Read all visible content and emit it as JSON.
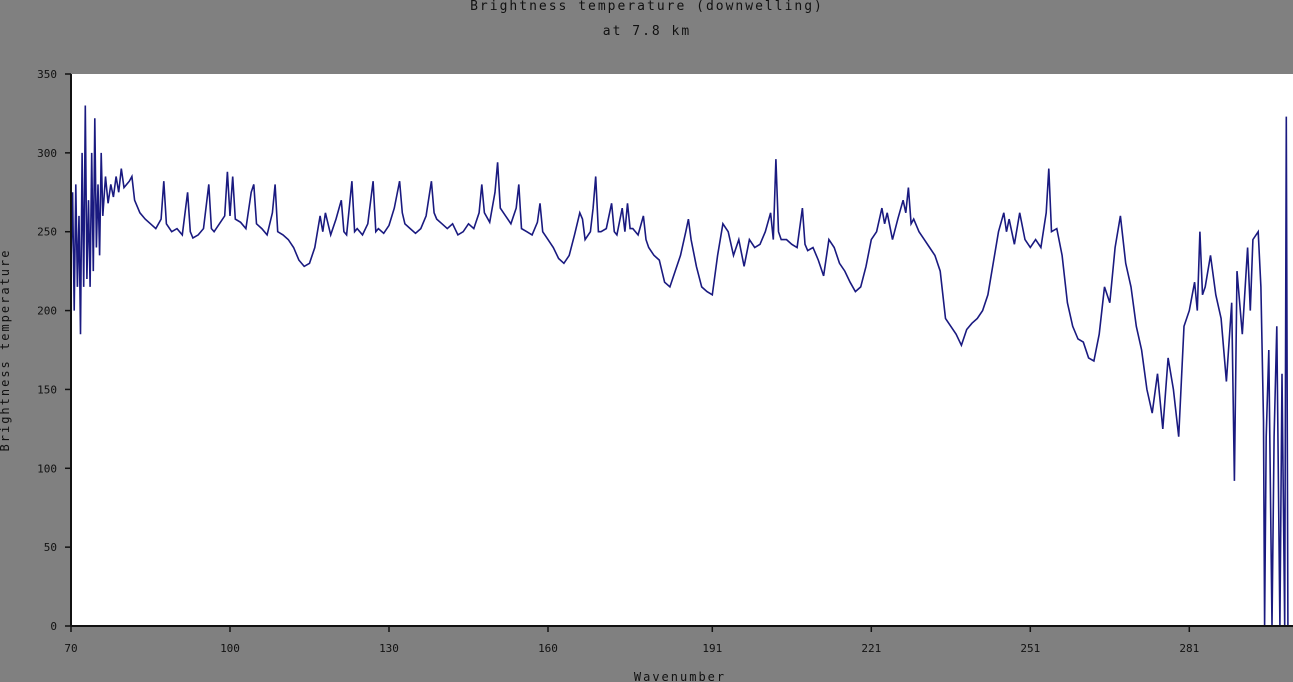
{
  "chart_data": {
    "type": "line",
    "title": "Brightness temperature (downwelling)",
    "subtitle": "at 7.8 km",
    "xlabel": "Wavenumber",
    "ylabel": "Brightness temperature",
    "xlim": [
      70,
      300
    ],
    "ylim": [
      0,
      350
    ],
    "xticks": [
      70,
      100,
      130,
      160,
      191,
      221,
      251,
      281
    ],
    "yticks": [
      0,
      50,
      100,
      150,
      200,
      250,
      300,
      350
    ],
    "grid": false,
    "line_color": "#1a1a80",
    "plot_background": "#ffffff",
    "figure_background": "#808080",
    "series": [
      {
        "points": [
          [
            70,
            230
          ],
          [
            70.3,
            275
          ],
          [
            70.6,
            200
          ],
          [
            70.9,
            280
          ],
          [
            71.2,
            215
          ],
          [
            71.5,
            260
          ],
          [
            71.8,
            185
          ],
          [
            72.1,
            300
          ],
          [
            72.4,
            215
          ],
          [
            72.7,
            330
          ],
          [
            73,
            220
          ],
          [
            73.3,
            270
          ],
          [
            73.6,
            215
          ],
          [
            73.9,
            300
          ],
          [
            74.2,
            225
          ],
          [
            74.5,
            322
          ],
          [
            74.8,
            240
          ],
          [
            75.1,
            280
          ],
          [
            75.4,
            235
          ],
          [
            75.7,
            300
          ],
          [
            76,
            260
          ],
          [
            76.5,
            285
          ],
          [
            77,
            268
          ],
          [
            77.5,
            280
          ],
          [
            78,
            272
          ],
          [
            78.5,
            285
          ],
          [
            79,
            275
          ],
          [
            79.5,
            290
          ],
          [
            80,
            278
          ],
          [
            81,
            282
          ],
          [
            81.5,
            285
          ],
          [
            82,
            270
          ],
          [
            83,
            262
          ],
          [
            84,
            258
          ],
          [
            85,
            255
          ],
          [
            86,
            252
          ],
          [
            87,
            258
          ],
          [
            87.5,
            282
          ],
          [
            88,
            255
          ],
          [
            89,
            250
          ],
          [
            90,
            252
          ],
          [
            91,
            248
          ],
          [
            92,
            275
          ],
          [
            92.5,
            250
          ],
          [
            93,
            246
          ],
          [
            94,
            248
          ],
          [
            95,
            252
          ],
          [
            96,
            280
          ],
          [
            96.5,
            252
          ],
          [
            97,
            250
          ],
          [
            98,
            255
          ],
          [
            99,
            260
          ],
          [
            99.5,
            288
          ],
          [
            100,
            260
          ],
          [
            100.5,
            285
          ],
          [
            101,
            258
          ],
          [
            102,
            256
          ],
          [
            103,
            252
          ],
          [
            104,
            275
          ],
          [
            104.5,
            280
          ],
          [
            105,
            255
          ],
          [
            106,
            252
          ],
          [
            107,
            248
          ],
          [
            108,
            262
          ],
          [
            108.5,
            280
          ],
          [
            109,
            250
          ],
          [
            110,
            248
          ],
          [
            111,
            245
          ],
          [
            112,
            240
          ],
          [
            113,
            232
          ],
          [
            114,
            228
          ],
          [
            115,
            230
          ],
          [
            116,
            240
          ],
          [
            117,
            260
          ],
          [
            117.5,
            250
          ],
          [
            118,
            262
          ],
          [
            119,
            248
          ],
          [
            120,
            258
          ],
          [
            121,
            270
          ],
          [
            121.5,
            250
          ],
          [
            122,
            248
          ],
          [
            123,
            282
          ],
          [
            123.5,
            250
          ],
          [
            124,
            252
          ],
          [
            125,
            248
          ],
          [
            126,
            255
          ],
          [
            127,
            282
          ],
          [
            127.5,
            250
          ],
          [
            128,
            252
          ],
          [
            129,
            249
          ],
          [
            130,
            254
          ],
          [
            131,
            265
          ],
          [
            132,
            282
          ],
          [
            132.5,
            262
          ],
          [
            133,
            255
          ],
          [
            134,
            252
          ],
          [
            135,
            249
          ],
          [
            136,
            252
          ],
          [
            137,
            260
          ],
          [
            138,
            282
          ],
          [
            138.5,
            262
          ],
          [
            139,
            258
          ],
          [
            140,
            255
          ],
          [
            141,
            252
          ],
          [
            142,
            255
          ],
          [
            143,
            248
          ],
          [
            144,
            250
          ],
          [
            145,
            255
          ],
          [
            146,
            252
          ],
          [
            147,
            262
          ],
          [
            147.5,
            280
          ],
          [
            148,
            262
          ],
          [
            149,
            256
          ],
          [
            150,
            275
          ],
          [
            150.5,
            294
          ],
          [
            151,
            265
          ],
          [
            152,
            260
          ],
          [
            153,
            255
          ],
          [
            154,
            265
          ],
          [
            154.5,
            280
          ],
          [
            155,
            252
          ],
          [
            156,
            250
          ],
          [
            157,
            248
          ],
          [
            158,
            256
          ],
          [
            158.5,
            268
          ],
          [
            159,
            250
          ],
          [
            160,
            245
          ],
          [
            161,
            240
          ],
          [
            162,
            233
          ],
          [
            163,
            230
          ],
          [
            164,
            235
          ],
          [
            165,
            248
          ],
          [
            166,
            262
          ],
          [
            166.5,
            258
          ],
          [
            167,
            245
          ],
          [
            168,
            250
          ],
          [
            168.5,
            265
          ],
          [
            169,
            285
          ],
          [
            169.5,
            250
          ],
          [
            170,
            250
          ],
          [
            171,
            252
          ],
          [
            172,
            268
          ],
          [
            172.5,
            250
          ],
          [
            173,
            248
          ],
          [
            174,
            265
          ],
          [
            174.5,
            250
          ],
          [
            175,
            268
          ],
          [
            175.5,
            252
          ],
          [
            176,
            252
          ],
          [
            177,
            248
          ],
          [
            178,
            260
          ],
          [
            178.5,
            245
          ],
          [
            179,
            240
          ],
          [
            180,
            235
          ],
          [
            181,
            232
          ],
          [
            182,
            218
          ],
          [
            183,
            215
          ],
          [
            184,
            225
          ],
          [
            185,
            235
          ],
          [
            186,
            250
          ],
          [
            186.5,
            258
          ],
          [
            187,
            245
          ],
          [
            188,
            228
          ],
          [
            189,
            215
          ],
          [
            190,
            212
          ],
          [
            191,
            210
          ],
          [
            192,
            235
          ],
          [
            193,
            255
          ],
          [
            194,
            250
          ],
          [
            195,
            235
          ],
          [
            196,
            245
          ],
          [
            197,
            228
          ],
          [
            198,
            245
          ],
          [
            199,
            240
          ],
          [
            200,
            242
          ],
          [
            201,
            250
          ],
          [
            202,
            262
          ],
          [
            202.5,
            245
          ],
          [
            203,
            296
          ],
          [
            203.5,
            250
          ],
          [
            204,
            245
          ],
          [
            205,
            245
          ],
          [
            206,
            242
          ],
          [
            207,
            240
          ],
          [
            208,
            265
          ],
          [
            208.5,
            242
          ],
          [
            209,
            238
          ],
          [
            210,
            240
          ],
          [
            211,
            232
          ],
          [
            212,
            222
          ],
          [
            213,
            245
          ],
          [
            214,
            240
          ],
          [
            215,
            230
          ],
          [
            216,
            225
          ],
          [
            217,
            218
          ],
          [
            218,
            212
          ],
          [
            219,
            215
          ],
          [
            220,
            228
          ],
          [
            221,
            245
          ],
          [
            222,
            250
          ],
          [
            223,
            265
          ],
          [
            223.5,
            255
          ],
          [
            224,
            262
          ],
          [
            225,
            245
          ],
          [
            226,
            258
          ],
          [
            227,
            270
          ],
          [
            227.5,
            262
          ],
          [
            228,
            278
          ],
          [
            228.5,
            255
          ],
          [
            229,
            258
          ],
          [
            230,
            250
          ],
          [
            231,
            245
          ],
          [
            232,
            240
          ],
          [
            233,
            235
          ],
          [
            234,
            225
          ],
          [
            235,
            195
          ],
          [
            236,
            190
          ],
          [
            237,
            185
          ],
          [
            238,
            178
          ],
          [
            239,
            188
          ],
          [
            240,
            192
          ],
          [
            241,
            195
          ],
          [
            242,
            200
          ],
          [
            243,
            210
          ],
          [
            244,
            230
          ],
          [
            245,
            250
          ],
          [
            246,
            262
          ],
          [
            246.5,
            250
          ],
          [
            247,
            258
          ],
          [
            248,
            242
          ],
          [
            249,
            262
          ],
          [
            250,
            245
          ],
          [
            251,
            240
          ],
          [
            252,
            245
          ],
          [
            253,
            240
          ],
          [
            254,
            262
          ],
          [
            254.5,
            290
          ],
          [
            255,
            250
          ],
          [
            256,
            252
          ],
          [
            257,
            235
          ],
          [
            258,
            205
          ],
          [
            259,
            190
          ],
          [
            260,
            182
          ],
          [
            261,
            180
          ],
          [
            262,
            170
          ],
          [
            263,
            168
          ],
          [
            264,
            185
          ],
          [
            265,
            215
          ],
          [
            266,
            205
          ],
          [
            267,
            240
          ],
          [
            268,
            260
          ],
          [
            269,
            230
          ],
          [
            270,
            215
          ],
          [
            271,
            190
          ],
          [
            272,
            175
          ],
          [
            273,
            150
          ],
          [
            274,
            135
          ],
          [
            275,
            160
          ],
          [
            276,
            125
          ],
          [
            277,
            170
          ],
          [
            278,
            150
          ],
          [
            279,
            120
          ],
          [
            280,
            190
          ],
          [
            281,
            200
          ],
          [
            282,
            218
          ],
          [
            282.5,
            200
          ],
          [
            283,
            250
          ],
          [
            283.5,
            210
          ],
          [
            284,
            215
          ],
          [
            285,
            235
          ],
          [
            286,
            210
          ],
          [
            287,
            195
          ],
          [
            288,
            155
          ],
          [
            289,
            205
          ],
          [
            289.5,
            92
          ],
          [
            290,
            225
          ],
          [
            291,
            185
          ],
          [
            292,
            240
          ],
          [
            292.5,
            200
          ],
          [
            293,
            245
          ],
          [
            294,
            250
          ],
          [
            294.5,
            215
          ],
          [
            295,
            130
          ],
          [
            295.2,
            0
          ],
          [
            295.5,
            120
          ],
          [
            296,
            175
          ],
          [
            296.6,
            0
          ],
          [
            297,
            120
          ],
          [
            297.5,
            190
          ],
          [
            298.1,
            0
          ],
          [
            298.5,
            160
          ],
          [
            299,
            0
          ],
          [
            299.3,
            323
          ],
          [
            299.6,
            0
          ]
        ]
      }
    ]
  }
}
